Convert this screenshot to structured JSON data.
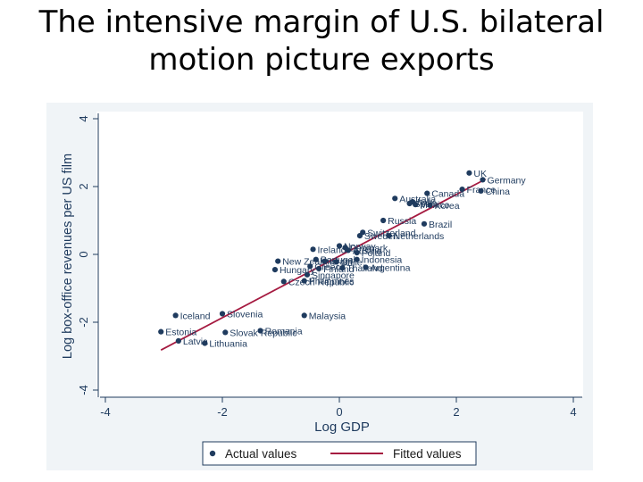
{
  "slide": {
    "title_line1": "The intensive margin of U.S. bilateral",
    "title_line2": "motion picture exports"
  },
  "chart_data": {
    "type": "scatter",
    "xlabel": "Log GDP",
    "ylabel": "Log box-office revenues per US film",
    "xlim": [
      -4,
      4
    ],
    "ylim": [
      -4,
      4
    ],
    "x_ticks": [
      "-4",
      "-2",
      "0",
      "2",
      "4"
    ],
    "y_ticks": [
      "-4",
      "-2",
      "0",
      "2",
      "4"
    ],
    "grid": false,
    "legend": [
      {
        "label": "Actual values",
        "kind": "marker"
      },
      {
        "label": "Fitted values",
        "kind": "line"
      }
    ],
    "colors": {
      "points": "#1f3b5e",
      "fit": "#a51a40",
      "frame": "#f0f4f7",
      "plot": "#ffffff"
    },
    "fitted_line": {
      "x": [
        -3.05,
        2.5
      ],
      "y": [
        -2.82,
        2.22
      ]
    },
    "points": [
      {
        "label": "UK",
        "x": 2.22,
        "y": 2.4
      },
      {
        "label": "Germany",
        "x": 2.45,
        "y": 2.2
      },
      {
        "label": "France",
        "x": 2.1,
        "y": 1.92
      },
      {
        "label": "China",
        "x": 2.42,
        "y": 1.87
      },
      {
        "label": "Canada",
        "x": 1.5,
        "y": 1.8
      },
      {
        "label": "Australia",
        "x": 0.95,
        "y": 1.65
      },
      {
        "label": "Italy",
        "x": 1.25,
        "y": 1.55
      },
      {
        "label": "Spain",
        "x": 1.2,
        "y": 1.5
      },
      {
        "label": "Mexico",
        "x": 1.3,
        "y": 1.47
      },
      {
        "label": "Korea",
        "x": 1.55,
        "y": 1.45
      },
      {
        "label": "Russia",
        "x": 0.75,
        "y": 1.0
      },
      {
        "label": "Brazil",
        "x": 1.45,
        "y": 0.9
      },
      {
        "label": "Switzerland",
        "x": 0.4,
        "y": 0.65
      },
      {
        "label": "Sweden",
        "x": 0.35,
        "y": 0.55
      },
      {
        "label": "Netherlands",
        "x": 0.85,
        "y": 0.55
      },
      {
        "label": "Ireland",
        "x": -0.45,
        "y": 0.15
      },
      {
        "label": "Norway",
        "x": 0.0,
        "y": 0.25
      },
      {
        "label": "Denmark",
        "x": 0.1,
        "y": 0.2
      },
      {
        "label": "Austria",
        "x": 0.15,
        "y": 0.12
      },
      {
        "label": "Poland",
        "x": 0.3,
        "y": 0.05
      },
      {
        "label": "New Zealand",
        "x": -1.05,
        "y": -0.2
      },
      {
        "label": "Portugal",
        "x": -0.4,
        "y": -0.15
      },
      {
        "label": "Israel",
        "x": -0.25,
        "y": -0.2
      },
      {
        "label": "Chile",
        "x": -0.05,
        "y": -0.22
      },
      {
        "label": "Indonesia",
        "x": 0.3,
        "y": -0.15
      },
      {
        "label": "Hungary",
        "x": -1.1,
        "y": -0.45
      },
      {
        "label": "Greece",
        "x": -0.5,
        "y": -0.35
      },
      {
        "label": "Finland",
        "x": -0.35,
        "y": -0.42
      },
      {
        "label": "Thailand",
        "x": 0.05,
        "y": -0.4
      },
      {
        "label": "Argentina",
        "x": 0.45,
        "y": -0.38
      },
      {
        "label": "Singapore",
        "x": -0.55,
        "y": -0.6
      },
      {
        "label": "Czech Republic",
        "x": -0.95,
        "y": -0.8
      },
      {
        "label": "Philippines",
        "x": -0.6,
        "y": -0.78
      },
      {
        "label": "Iceland",
        "x": -2.8,
        "y": -1.8
      },
      {
        "label": "Slovenia",
        "x": -2.0,
        "y": -1.75
      },
      {
        "label": "Malaysia",
        "x": -0.6,
        "y": -1.8
      },
      {
        "label": "Estonia",
        "x": -3.05,
        "y": -2.28
      },
      {
        "label": "Slovak Republic",
        "x": -1.95,
        "y": -2.3
      },
      {
        "label": "Romania",
        "x": -1.35,
        "y": -2.25
      },
      {
        "label": "Latvia",
        "x": -2.75,
        "y": -2.55
      },
      {
        "label": "Lithuania",
        "x": -2.3,
        "y": -2.62
      }
    ]
  }
}
